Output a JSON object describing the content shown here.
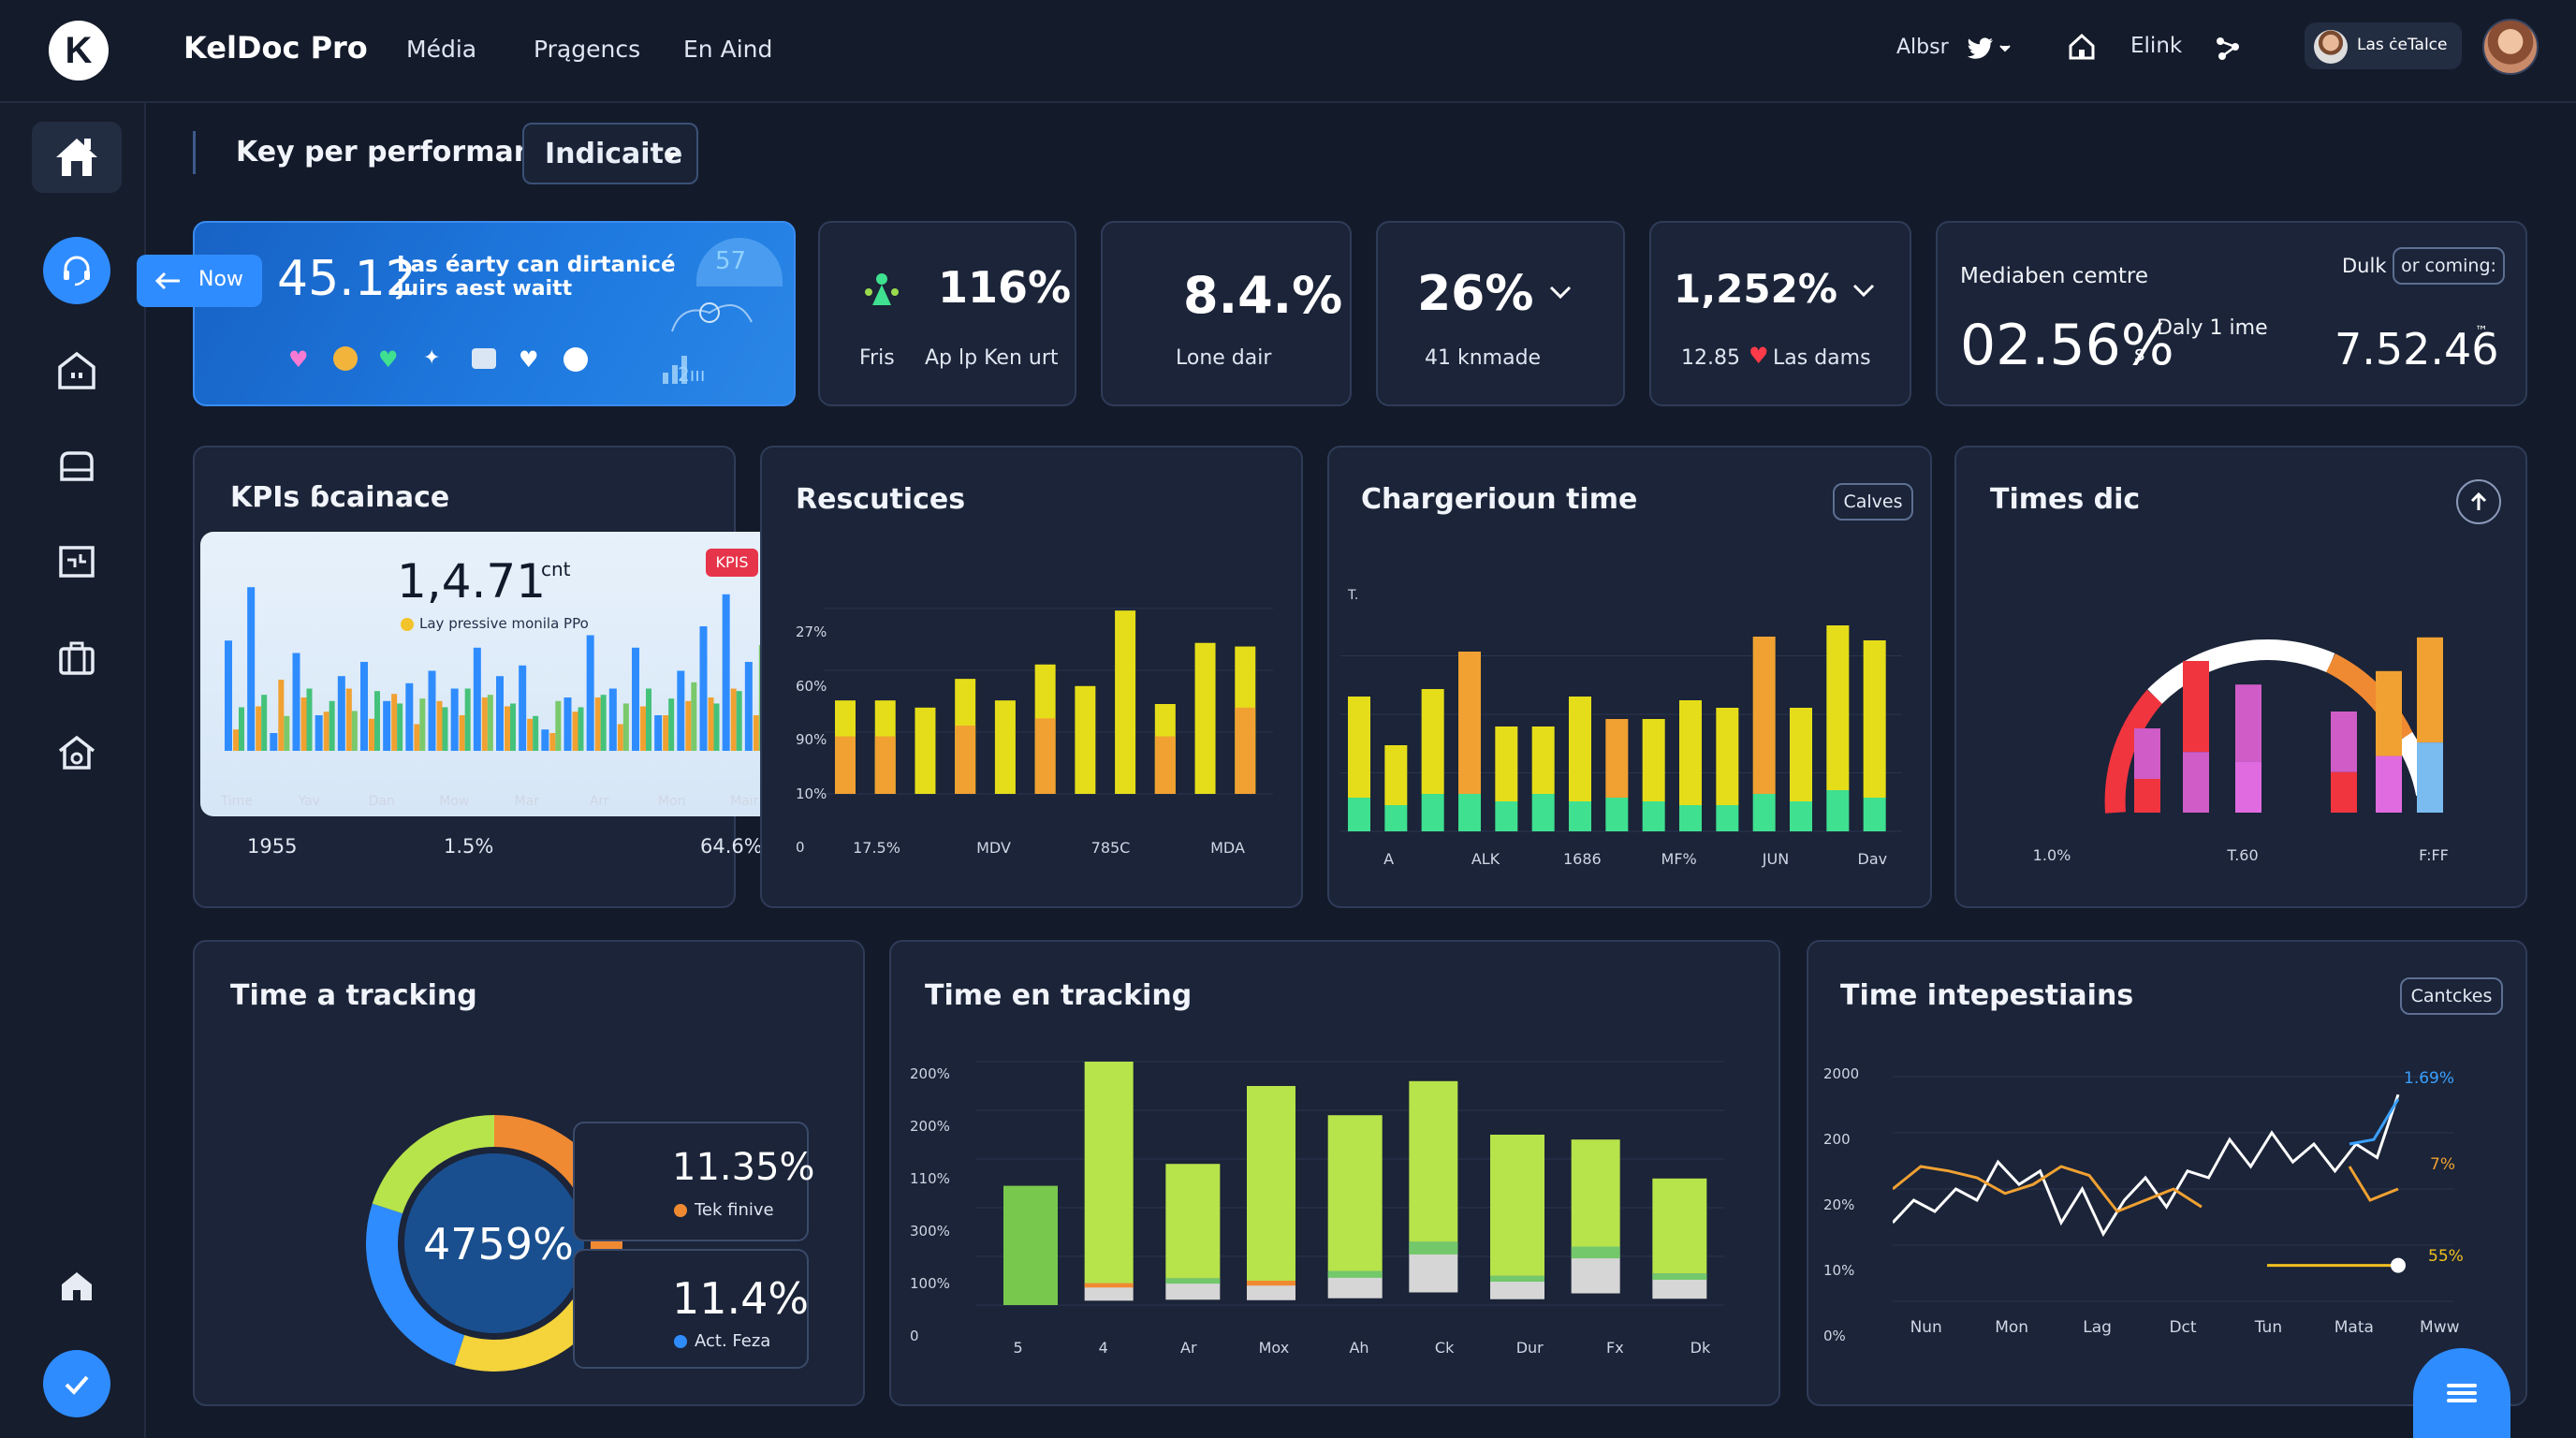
{
  "app": {
    "brand": "KelDoc Pro",
    "logo_letter": "K"
  },
  "topnav": {
    "items": [
      "Média",
      "Prągencs",
      "En Aind"
    ],
    "right": {
      "label1": "Albsr",
      "label2": "Elink",
      "user": "Las ċeTalce"
    }
  },
  "toolbar": {
    "title": "Key per performance",
    "dropdown": "Indicaite"
  },
  "hero": {
    "now": "Now",
    "value": "45.12",
    "text1": "Las éarty can dirtanicé",
    "text2": "juirs aest waitt",
    "badge": "57",
    "small": "2ııı"
  },
  "kpis": [
    {
      "value": "116%",
      "label1": "Fris",
      "label2": "Ap lp Ken urt"
    },
    {
      "value": "8.4.%",
      "label1": "Lone dair"
    },
    {
      "value": "26%",
      "unit": "%",
      "label1": "41 knmade"
    },
    {
      "value": "1,252%",
      "label1": "12.85",
      "label2": "Las dams"
    }
  ],
  "mediaben": {
    "title": "Mediaben cemtre",
    "dulk": "Dulk",
    "pill": "or coming:",
    "value": "02.56%",
    "suffix": "s",
    "daly": "Daly 1 ime",
    "value2": "7.52.46",
    "tm": "™"
  },
  "kpis_balance": {
    "title": "KPIs ɓcainace",
    "value": "1,4.71",
    "unit": "cnt",
    "badge": "KPIS",
    "legend": "Lay pressive monila PPo",
    "xlabels": [
      "Time",
      "Yav",
      "Dan",
      "Mow",
      "Mar",
      "Arr",
      "Mon",
      "Maır"
    ],
    "footer": [
      "1955",
      "1.5%",
      "64.6%"
    ]
  },
  "rescutices": {
    "title": "Rescutices",
    "ylabels": [
      "27%",
      "60%",
      "90%",
      "10%",
      "0"
    ],
    "xlabels": [
      "17.5%",
      "MDV",
      "785C",
      "MDA"
    ]
  },
  "chargeriour": {
    "title": "Chargerioun time",
    "button": "Calves",
    "ylabel": "T.",
    "xlabels": [
      "A",
      "ALK",
      "1686",
      "MF%",
      "JUN",
      "Dav"
    ]
  },
  "timesdic": {
    "title": "Times dic",
    "xlabels": [
      "1.0%",
      "T.60",
      "F:FF"
    ]
  },
  "time_tracking": {
    "title": "Time a tracking",
    "center": "4759%",
    "stat1": "11.35%",
    "stat1_label": "Tek finive",
    "stat2": "11.4%",
    "stat2_label": "Act. Feza"
  },
  "time_en": {
    "title": "Time en tracking",
    "ylabels": [
      "200%",
      "200%",
      "110%",
      "300%",
      "100%",
      "0"
    ],
    "xlabels": [
      "5",
      "4",
      "Ar",
      "Mox",
      "Ah",
      "Ck",
      "Dur",
      "Fx",
      "Dk"
    ]
  },
  "time_int": {
    "title": "Time intepestiains",
    "button": "Cantckes",
    "ylabels": [
      "2000",
      "200",
      "20%",
      "10%",
      "0%"
    ],
    "xlabels": [
      "Nun",
      "Mon",
      "Lag",
      "Dct",
      "Tun",
      "Mata",
      "Mww"
    ],
    "annot": [
      "1.69%",
      "7%",
      "55%"
    ]
  },
  "chart_data": [
    {
      "type": "bar",
      "title": "KPIs ɓcainace",
      "series": [
        {
          "name": "blue",
          "values": [
            0.62,
            0.92,
            0.1,
            0.55,
            0.2,
            0.42,
            0.5,
            0.28,
            0.38,
            0.45,
            0.35,
            0.58,
            0.42,
            0.48,
            0.12,
            0.3,
            0.65,
            0.35,
            0.58,
            0.2,
            0.45,
            0.7,
            0.88,
            0.5
          ]
        },
        {
          "name": "orange",
          "values": [
            0.12,
            0.25,
            0.4,
            0.3,
            0.22,
            0.35,
            0.18,
            0.32,
            0.15,
            0.28,
            0.2,
            0.3,
            0.25,
            0.18,
            0.1,
            0.22,
            0.3,
            0.15,
            0.25,
            0.2,
            0.28,
            0.3,
            0.35,
            0.2
          ]
        },
        {
          "name": "green",
          "values": [
            0.35,
            0.45,
            0.28,
            0.5,
            0.4,
            0.32,
            0.48,
            0.38,
            0.42,
            0.35,
            0.5,
            0.45,
            0.38,
            0.28,
            0.4,
            0.35,
            0.45,
            0.38,
            0.5,
            0.42,
            0.55,
            0.38,
            0.48,
            0.85
          ]
        }
      ]
    },
    {
      "type": "bar",
      "title": "Rescutices",
      "series": [
        {
          "name": "yellow",
          "values": [
            0.26,
            0.26,
            0.24,
            0.32,
            0.26,
            0.36,
            0.3,
            0.51,
            0.25,
            0.42,
            0.41
          ]
        },
        {
          "name": "orange",
          "values": [
            0.16,
            0.16,
            0.0,
            0.19,
            0.0,
            0.21,
            0.0,
            0.0,
            0.16,
            0.0,
            0.24
          ]
        }
      ]
    },
    {
      "type": "bar",
      "title": "Chargerioun time",
      "series": [
        {
          "name": "yellow",
          "values": [
            0.36,
            0.23,
            0.38,
            0.48,
            0.28,
            0.28,
            0.36,
            0.3,
            0.3,
            0.35,
            0.33,
            0.52,
            0.33,
            0.55,
            0.51
          ]
        },
        {
          "name": "green",
          "values": [
            0.09,
            0.07,
            0.1,
            0.1,
            0.08,
            0.1,
            0.08,
            0.09,
            0.08,
            0.07,
            0.07,
            0.1,
            0.08,
            0.11,
            0.09
          ]
        }
      ]
    },
    {
      "type": "bar",
      "title": "Times dic",
      "series": [
        {
          "name": "values",
          "values": [
            0.25,
            0.45,
            0.38,
            0.3,
            0.42,
            0.52
          ]
        }
      ]
    },
    {
      "type": "pie",
      "title": "Time a tracking",
      "series": [
        {
          "name": "share",
          "values": [
            35,
            20,
            25,
            20
          ]
        }
      ]
    },
    {
      "type": "bar",
      "title": "Time en tracking",
      "series": [
        {
          "name": "lime",
          "values": [
            0.49,
            1.0,
            0.58,
            0.9,
            0.78,
            0.92,
            0.7,
            0.68,
            0.52
          ]
        },
        {
          "name": "base",
          "values": [
            0.0,
            0.09,
            0.11,
            0.1,
            0.14,
            0.26,
            0.12,
            0.24,
            0.13
          ]
        }
      ]
    },
    {
      "type": "line",
      "title": "Time intepestiains",
      "series": [
        {
          "name": "white",
          "values": [
            0.35,
            0.45,
            0.4,
            0.5,
            0.45,
            0.62,
            0.52,
            0.58,
            0.35,
            0.5,
            0.3,
            0.45,
            0.55,
            0.42,
            0.58,
            0.55,
            0.72,
            0.6,
            0.75,
            0.62,
            0.7,
            0.58,
            0.7,
            0.64,
            0.92
          ]
        },
        {
          "name": "orange",
          "values": [
            0.5,
            0.6,
            0.58,
            0.55,
            0.48,
            0.52,
            0.6,
            0.56,
            0.4,
            0.45,
            0.5,
            0.42
          ]
        }
      ]
    }
  ],
  "colors": {
    "accent": "#2f8cff",
    "yellow": "#e6dd1a",
    "orange": "#f0a132",
    "green": "#3fe08f",
    "lime": "#b7e34b",
    "pink": "#e06be0",
    "red": "#f0353f"
  }
}
